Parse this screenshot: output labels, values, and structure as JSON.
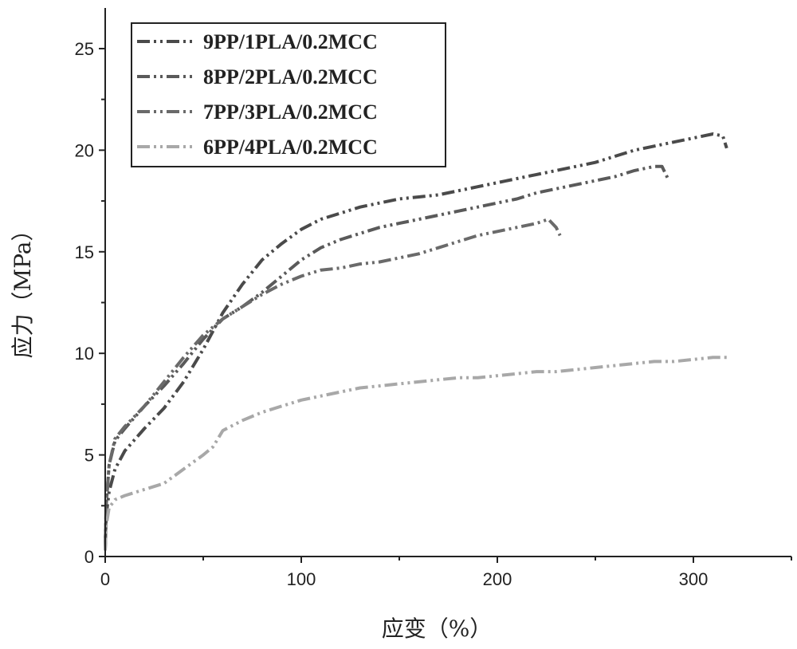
{
  "chart_data": {
    "type": "line",
    "xlabel": "应变（%）",
    "ylabel": "应力（MPa）",
    "xlim": [
      0,
      350
    ],
    "ylim": [
      0,
      27
    ],
    "x_ticks": [
      0,
      100,
      200,
      300
    ],
    "y_ticks": [
      0,
      5,
      10,
      15,
      20,
      25
    ],
    "grid": false,
    "legend_position": "top-left",
    "series": [
      {
        "name": "9PP/1PLA/0.2MCC",
        "color": "#4a4a4a",
        "points": [
          [
            0,
            0.5
          ],
          [
            0.5,
            2
          ],
          [
            2,
            3.2
          ],
          [
            5,
            4.3
          ],
          [
            10,
            5.2
          ],
          [
            20,
            6.3
          ],
          [
            30,
            7.3
          ],
          [
            40,
            8.6
          ],
          [
            50,
            10.2
          ],
          [
            60,
            12
          ],
          [
            70,
            13.4
          ],
          [
            80,
            14.6
          ],
          [
            90,
            15.4
          ],
          [
            100,
            16.1
          ],
          [
            110,
            16.6
          ],
          [
            120,
            16.9
          ],
          [
            130,
            17.2
          ],
          [
            140,
            17.4
          ],
          [
            150,
            17.6
          ],
          [
            160,
            17.7
          ],
          [
            170,
            17.8
          ],
          [
            180,
            18
          ],
          [
            190,
            18.2
          ],
          [
            200,
            18.4
          ],
          [
            210,
            18.6
          ],
          [
            220,
            18.8
          ],
          [
            230,
            19
          ],
          [
            240,
            19.2
          ],
          [
            250,
            19.4
          ],
          [
            260,
            19.7
          ],
          [
            270,
            20
          ],
          [
            280,
            20.2
          ],
          [
            290,
            20.4
          ],
          [
            300,
            20.6
          ],
          [
            310,
            20.8
          ],
          [
            315,
            20.7
          ],
          [
            317,
            20.1
          ]
        ]
      },
      {
        "name": "8PP/2PLA/0.2MCC",
        "color": "#5a5a5a",
        "points": [
          [
            0,
            0.4
          ],
          [
            0.5,
            2.5
          ],
          [
            2,
            4.5
          ],
          [
            5,
            5.7
          ],
          [
            10,
            6.3
          ],
          [
            20,
            7.4
          ],
          [
            30,
            8.4
          ],
          [
            40,
            9.5
          ],
          [
            50,
            10.7
          ],
          [
            60,
            11.7
          ],
          [
            70,
            12.3
          ],
          [
            80,
            13
          ],
          [
            90,
            13.8
          ],
          [
            100,
            14.6
          ],
          [
            110,
            15.2
          ],
          [
            120,
            15.6
          ],
          [
            130,
            15.9
          ],
          [
            140,
            16.2
          ],
          [
            150,
            16.4
          ],
          [
            160,
            16.6
          ],
          [
            170,
            16.8
          ],
          [
            180,
            17
          ],
          [
            190,
            17.2
          ],
          [
            200,
            17.4
          ],
          [
            210,
            17.6
          ],
          [
            220,
            17.9
          ],
          [
            230,
            18.1
          ],
          [
            240,
            18.3
          ],
          [
            250,
            18.5
          ],
          [
            260,
            18.7
          ],
          [
            270,
            19
          ],
          [
            280,
            19.2
          ],
          [
            284,
            19.2
          ],
          [
            287,
            18.6
          ]
        ]
      },
      {
        "name": "7PP/3PLA/0.2MCC",
        "color": "#6a6a6a",
        "points": [
          [
            0,
            0.3
          ],
          [
            0.5,
            2.5
          ],
          [
            2,
            4.5
          ],
          [
            5,
            5.8
          ],
          [
            10,
            6.4
          ],
          [
            20,
            7.4
          ],
          [
            30,
            8.6
          ],
          [
            40,
            9.8
          ],
          [
            50,
            10.9
          ],
          [
            60,
            11.7
          ],
          [
            70,
            12.3
          ],
          [
            80,
            12.9
          ],
          [
            90,
            13.4
          ],
          [
            100,
            13.8
          ],
          [
            110,
            14.1
          ],
          [
            120,
            14.2
          ],
          [
            130,
            14.4
          ],
          [
            140,
            14.5
          ],
          [
            150,
            14.7
          ],
          [
            160,
            14.9
          ],
          [
            170,
            15.2
          ],
          [
            180,
            15.5
          ],
          [
            190,
            15.8
          ],
          [
            200,
            16
          ],
          [
            210,
            16.2
          ],
          [
            220,
            16.4
          ],
          [
            226,
            16.6
          ],
          [
            230,
            16.2
          ],
          [
            232,
            15.8
          ]
        ]
      },
      {
        "name": "6PP/4PLA/0.2MCC",
        "color": "#a8a8a8",
        "points": [
          [
            0,
            0.3
          ],
          [
            0.5,
            1.5
          ],
          [
            2,
            2.4
          ],
          [
            5,
            2.8
          ],
          [
            10,
            3
          ],
          [
            20,
            3.3
          ],
          [
            30,
            3.6
          ],
          [
            40,
            4.3
          ],
          [
            50,
            5
          ],
          [
            55,
            5.4
          ],
          [
            60,
            6.2
          ],
          [
            70,
            6.7
          ],
          [
            80,
            7.1
          ],
          [
            90,
            7.4
          ],
          [
            100,
            7.7
          ],
          [
            110,
            7.9
          ],
          [
            120,
            8.1
          ],
          [
            130,
            8.3
          ],
          [
            140,
            8.4
          ],
          [
            150,
            8.5
          ],
          [
            160,
            8.6
          ],
          [
            170,
            8.7
          ],
          [
            180,
            8.8
          ],
          [
            190,
            8.8
          ],
          [
            200,
            8.9
          ],
          [
            210,
            9
          ],
          [
            220,
            9.1
          ],
          [
            230,
            9.1
          ],
          [
            240,
            9.2
          ],
          [
            250,
            9.3
          ],
          [
            260,
            9.4
          ],
          [
            270,
            9.5
          ],
          [
            280,
            9.6
          ],
          [
            290,
            9.6
          ],
          [
            300,
            9.7
          ],
          [
            310,
            9.8
          ],
          [
            317,
            9.8
          ]
        ]
      }
    ]
  }
}
